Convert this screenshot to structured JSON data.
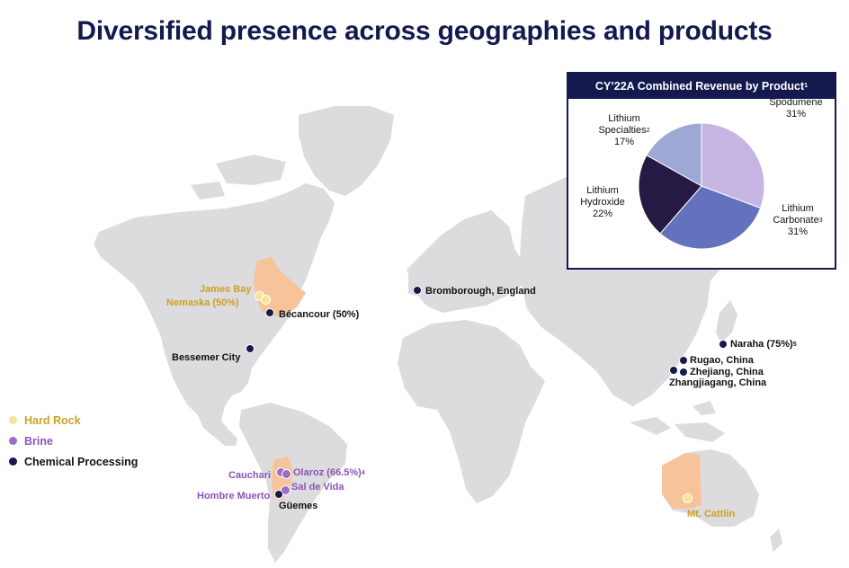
{
  "title": "Diversified presence across geographies and products",
  "legend": [
    {
      "label": "Hard Rock",
      "color": "#f7e39a",
      "text_color": "#c9a227"
    },
    {
      "label": "Brine",
      "color": "#9b6cc8",
      "text_color": "#8a55b8"
    },
    {
      "label": "Chemical Processing",
      "color": "#141a4e",
      "text_color": "#111111"
    }
  ],
  "sites": {
    "james_bay": "James Bay",
    "nemaska": "Nemaska (50%)",
    "becancour": "Bécancour (50%)",
    "bessemer": "Bessemer City",
    "bromborough": "Bromborough, England",
    "naraha": "Naraha (75%)",
    "naraha_sup": "5",
    "rugao": "Rugao, China",
    "zhejiang": "Zhejiang, China",
    "zhangjiagang": "Zhangjiagang, China",
    "cauchari": "Cauchari",
    "olaroz": "Olaroz (66.5%)",
    "olaroz_sup": "4",
    "sal_de_vida": "Sal de Vida",
    "hombre_muerto": "Hombre Muerto",
    "guemes": "Güemes",
    "mt_cattlin": "Mt. Cattlin"
  },
  "chart_data": {
    "type": "pie",
    "title": "CY’22A Combined Revenue by Product",
    "title_sup": "1",
    "slices": [
      {
        "label": "Spodumene",
        "sup": "",
        "value": 31,
        "display": "31%",
        "color": "#c6b4e2"
      },
      {
        "label": "Lithium Carbonate",
        "sup": "3",
        "value": 31,
        "display": "31%",
        "color": "#6472bd"
      },
      {
        "label": "Lithium Hydroxide",
        "sup": "",
        "value": 22,
        "display": "22%",
        "color": "#241a43"
      },
      {
        "label": "Lithium Specialties",
        "sup": "2",
        "value": 17,
        "display": "17%",
        "color": "#9ea8d4"
      }
    ]
  }
}
